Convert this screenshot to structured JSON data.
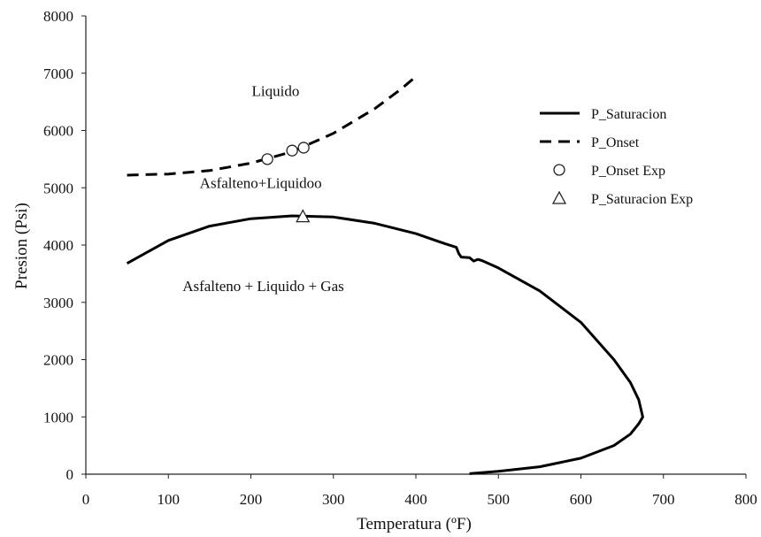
{
  "chart_data": {
    "type": "line",
    "title": "",
    "xlabel": "Temperatura (ºF)",
    "ylabel": "Presion (Psi)",
    "xlim": [
      0,
      800
    ],
    "ylim": [
      0,
      8000
    ],
    "x_ticks": [
      0,
      100,
      200,
      300,
      400,
      500,
      600,
      700,
      800
    ],
    "y_ticks": [
      0,
      1000,
      2000,
      3000,
      4000,
      5000,
      6000,
      7000,
      8000
    ],
    "grid": false,
    "legend_position": "right",
    "series": [
      {
        "name": "P_Saturacion",
        "style": "solid",
        "points": [
          [
            50,
            3680
          ],
          [
            100,
            4080
          ],
          [
            150,
            4330
          ],
          [
            200,
            4460
          ],
          [
            250,
            4510
          ],
          [
            300,
            4490
          ],
          [
            350,
            4380
          ],
          [
            400,
            4200
          ],
          [
            430,
            4050
          ],
          [
            449,
            3960
          ],
          [
            452,
            3850
          ],
          [
            455,
            3790
          ],
          [
            465,
            3780
          ],
          [
            470,
            3720
          ],
          [
            475,
            3750
          ],
          [
            480,
            3730
          ],
          [
            500,
            3600
          ],
          [
            550,
            3200
          ],
          [
            600,
            2650
          ],
          [
            640,
            2000
          ],
          [
            660,
            1600
          ],
          [
            670,
            1300
          ],
          [
            675,
            1000
          ],
          [
            670,
            880
          ],
          [
            660,
            700
          ],
          [
            640,
            500
          ],
          [
            600,
            280
          ],
          [
            550,
            130
          ],
          [
            500,
            50
          ],
          [
            465,
            10
          ]
        ]
      },
      {
        "name": "P_Onset",
        "style": "dashed",
        "points": [
          [
            50,
            5220
          ],
          [
            100,
            5240
          ],
          [
            150,
            5300
          ],
          [
            200,
            5430
          ],
          [
            250,
            5630
          ],
          [
            300,
            5950
          ],
          [
            350,
            6380
          ],
          [
            380,
            6700
          ],
          [
            400,
            6940
          ]
        ]
      },
      {
        "name": "P_Onset Exp",
        "style": "marker-circle",
        "points": [
          [
            220,
            5500
          ],
          [
            250,
            5650
          ],
          [
            264,
            5700
          ]
        ]
      },
      {
        "name": "P_Saturacion Exp",
        "style": "marker-triangle",
        "points": [
          [
            263,
            4500
          ]
        ]
      }
    ],
    "annotations": [
      {
        "text": "Liquido",
        "x": 230,
        "y": 6600
      },
      {
        "text": "Asfalteno+Liquidoo",
        "x": 212,
        "y": 5000
      },
      {
        "text": "Asfalteno + Liquido + Gas",
        "x": 215,
        "y": 3200
      }
    ]
  }
}
